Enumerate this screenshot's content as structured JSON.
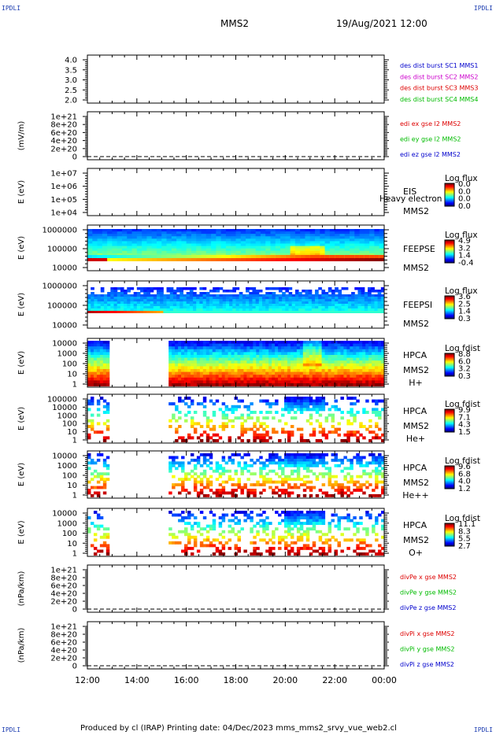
{
  "corner_label": "IPDLI",
  "header": {
    "spacecraft": "MMS2",
    "date_time": "19/Aug/2021 12:00"
  },
  "footer": {
    "text": "Produced by cl (IRAP)    Printing date: 04/Dec/2023    mms_mms2_srvy_vue_web2.cl"
  },
  "x_axis": {
    "start_hour": 12,
    "end_hour": 24,
    "ticks": [
      "12:00",
      "14:00",
      "16:00",
      "18:00",
      "20:00",
      "22:00",
      "00:00"
    ]
  },
  "chart_data": [
    {
      "type": "line",
      "title": "",
      "ylabel": "",
      "ytick_labels": [
        "4.0",
        "3.5",
        "3.0",
        "2.5",
        "2.0"
      ],
      "ylim": [
        1.8,
        4.2
      ],
      "legend": [
        {
          "text": "des dist burst SC1 MMS1",
          "color": "#0000cc"
        },
        {
          "text": "des dist burst SC2 MMS2",
          "color": "#cc00cc"
        },
        {
          "text": "des dist burst SC3 MMS3",
          "color": "#dd0000"
        },
        {
          "text": "des dist burst SC4 MMS4",
          "color": "#00bb00"
        }
      ]
    },
    {
      "type": "line",
      "ylabel": "(mV/m)",
      "ytick_labels": [
        "1e+21",
        "8e+20",
        "6e+20",
        "4e+20",
        "2e+20",
        "0"
      ],
      "ylim": [
        0,
        1.1e+21
      ],
      "dashed_zero": true,
      "legend": [
        {
          "text": "edi ex gse l2 MMS2",
          "color": "#dd0000"
        },
        {
          "text": "edi ey gse l2 MMS2",
          "color": "#00bb00"
        },
        {
          "text": "edi ez gse l2 MMS2",
          "color": "#0000cc"
        }
      ]
    },
    {
      "type": "heatmap",
      "ylabel": "E (eV)",
      "ytick_labels": [
        "1e+07",
        "1e+06",
        "1e+05",
        "1e+04"
      ],
      "log_scale": true,
      "labels": [
        "EIS",
        "Heavy electron to",
        "MMS2"
      ],
      "colorbar": {
        "title": "Log flux",
        "ticks": [
          "0.0",
          "0.0",
          "0.0",
          "0.0"
        ]
      },
      "profile": "none"
    },
    {
      "type": "heatmap",
      "ylabel": "E (eV)",
      "ytick_labels": [
        "1000000",
        "100000",
        "10000"
      ],
      "log_scale": true,
      "labels": [
        "FEEPSE",
        "MMS2"
      ],
      "colorbar": {
        "title": "Log flux",
        "ticks": [
          "4.9",
          "3.2",
          "1.4",
          "-0.4"
        ]
      },
      "profile": "feepse"
    },
    {
      "type": "heatmap",
      "ylabel": "E (eV)",
      "ytick_labels": [
        "1000000",
        "100000",
        "10000"
      ],
      "log_scale": true,
      "labels": [
        "FEEPSI",
        "MMS2"
      ],
      "colorbar": {
        "title": "Log flux",
        "ticks": [
          "3.6",
          "2.5",
          "1.4",
          "0.3"
        ]
      },
      "profile": "feepsi"
    },
    {
      "type": "heatmap",
      "ylabel": "E (eV)",
      "ytick_labels": [
        "10000",
        "1000",
        "100",
        "10",
        "1"
      ],
      "log_scale": true,
      "labels": [
        "HPCA",
        "MMS2",
        "H+"
      ],
      "colorbar": {
        "title": "Log fdist",
        "ticks": [
          "8.8",
          "6.0",
          "3.2",
          "0.3"
        ]
      },
      "profile": "hplus"
    },
    {
      "type": "heatmap",
      "ylabel": "E (eV)",
      "ytick_labels": [
        "100000",
        "10000",
        "1000",
        "100",
        "10",
        "1"
      ],
      "log_scale": true,
      "labels": [
        "HPCA",
        "MMS2",
        "He+"
      ],
      "colorbar": {
        "title": "Log fdist",
        "ticks": [
          "9.9",
          "7.1",
          "4.3",
          "1.5"
        ]
      },
      "profile": "heplus"
    },
    {
      "type": "heatmap",
      "ylabel": "E (eV)",
      "ytick_labels": [
        "10000",
        "1000",
        "100",
        "10",
        "1"
      ],
      "log_scale": true,
      "labels": [
        "HPCA",
        "MMS2",
        "He++"
      ],
      "colorbar": {
        "title": "Log fdist",
        "ticks": [
          "9.6",
          "6.8",
          "4.0",
          "1.2"
        ]
      },
      "profile": "hepp"
    },
    {
      "type": "heatmap",
      "ylabel": "E (eV)",
      "ytick_labels": [
        "10000",
        "1000",
        "100",
        "10",
        "1"
      ],
      "log_scale": true,
      "labels": [
        "HPCA",
        "MMS2",
        "O+"
      ],
      "colorbar": {
        "title": "Log fdist",
        "ticks": [
          "11.1",
          "8.3",
          "5.5",
          "2.7"
        ]
      },
      "profile": "oplus"
    },
    {
      "type": "line",
      "ylabel": "(nPa/km)",
      "ytick_labels": [
        "1e+21",
        "8e+20",
        "6e+20",
        "4e+20",
        "2e+20",
        "0"
      ],
      "ylim": [
        0,
        1.1e+21
      ],
      "dashed_zero": true,
      "legend": [
        {
          "text": "divPe x gse MMS2",
          "color": "#dd0000"
        },
        {
          "text": "divPe y gse MMS2",
          "color": "#00bb00"
        },
        {
          "text": "divPe z gse MMS2",
          "color": "#0000cc"
        }
      ]
    },
    {
      "type": "line",
      "ylabel": "(nPa/km)",
      "ytick_labels": [
        "1e+21",
        "8e+20",
        "6e+20",
        "4e+20",
        "2e+20",
        "0"
      ],
      "ylim": [
        0,
        1.1e+21
      ],
      "dashed_zero": true,
      "legend": [
        {
          "text": "divPi x gse MMS2",
          "color": "#dd0000"
        },
        {
          "text": "divPi y gse MMS2",
          "color": "#00bb00"
        },
        {
          "text": "divPi z gse MMS2",
          "color": "#0000cc"
        }
      ]
    }
  ]
}
